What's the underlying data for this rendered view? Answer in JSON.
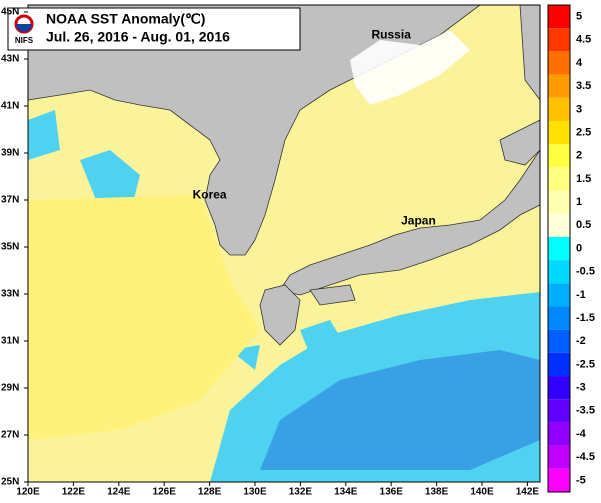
{
  "title": "NOAA SST Anomaly(℃)",
  "subtitle": "Jul. 26, 2016 - Aug. 01, 2016",
  "logo": "NIFS",
  "places": [
    "Russia",
    "Korea",
    "Japan"
  ],
  "map": {
    "lonticks": [
      {
        "value": 120,
        "label": "120E"
      },
      {
        "value": 122,
        "label": "122E"
      },
      {
        "value": 124,
        "label": "124E"
      },
      {
        "value": 126,
        "label": "126E"
      },
      {
        "value": 128,
        "label": "128E"
      },
      {
        "value": 130,
        "label": "130E"
      },
      {
        "value": 132,
        "label": "132E"
      },
      {
        "value": 134,
        "label": "134E"
      },
      {
        "value": 136,
        "label": "136E"
      },
      {
        "value": 138,
        "label": "138E"
      },
      {
        "value": 140,
        "label": "140E"
      },
      {
        "value": 142,
        "label": "142E"
      }
    ],
    "latticks": [
      {
        "value": 25,
        "label": "25N"
      },
      {
        "value": 27,
        "label": "27N"
      },
      {
        "value": 29,
        "label": "29N"
      },
      {
        "value": 31,
        "label": "31N"
      },
      {
        "value": 33,
        "label": "33N"
      },
      {
        "value": 35,
        "label": "35N"
      },
      {
        "value": 37,
        "label": "37N"
      },
      {
        "value": 39,
        "label": "39N"
      },
      {
        "value": 41,
        "label": "41N"
      },
      {
        "value": 43,
        "label": "43N"
      },
      {
        "value": 45,
        "label": "45N"
      }
    ]
  },
  "colorbar": {
    "ticks": [
      5,
      4.5,
      4,
      3.5,
      3,
      2.5,
      2,
      1.5,
      1,
      0.5,
      0,
      -0.5,
      -1,
      -1.5,
      -2,
      -2.5,
      -3,
      -3.5,
      -4,
      -4.5,
      -5
    ],
    "colors": [
      "#ff0000",
      "#ff3a00",
      "#ff7000",
      "#ff9a00",
      "#ffc000",
      "#ffe000",
      "#ffff40",
      "#ffff80",
      "#ffffb0",
      "#ffffd8",
      "#00ffff",
      "#00d8ff",
      "#00b0ff",
      "#0088ff",
      "#0060ff",
      "#0030ff",
      "#3000ff",
      "#6000ff",
      "#9000ff",
      "#c000ff",
      "#ff00ff"
    ]
  }
}
